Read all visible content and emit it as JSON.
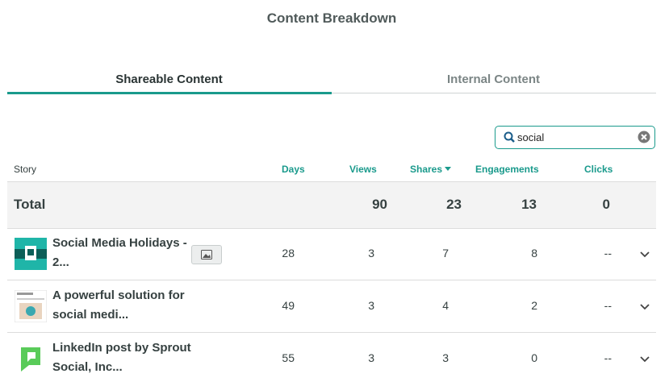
{
  "header": {
    "title": "Content Breakdown"
  },
  "tabs": [
    "Shareable Content",
    "Internal Content"
  ],
  "search": {
    "value": "social"
  },
  "table": {
    "columns": [
      "Story",
      "Days",
      "Views",
      "Shares",
      "Engagements",
      "Clicks"
    ],
    "total": {
      "label": "Total",
      "values": [
        90,
        23,
        13,
        0
      ]
    },
    "rows": [
      [
        "Social Media Holidays - 2...",
        28,
        3,
        7,
        8,
        "--"
      ],
      [
        "A powerful solution for social medi...",
        49,
        3,
        4,
        2,
        "--"
      ],
      [
        "LinkedIn post by Sprout Social, Inc...",
        55,
        3,
        3,
        0,
        "--"
      ]
    ]
  }
}
